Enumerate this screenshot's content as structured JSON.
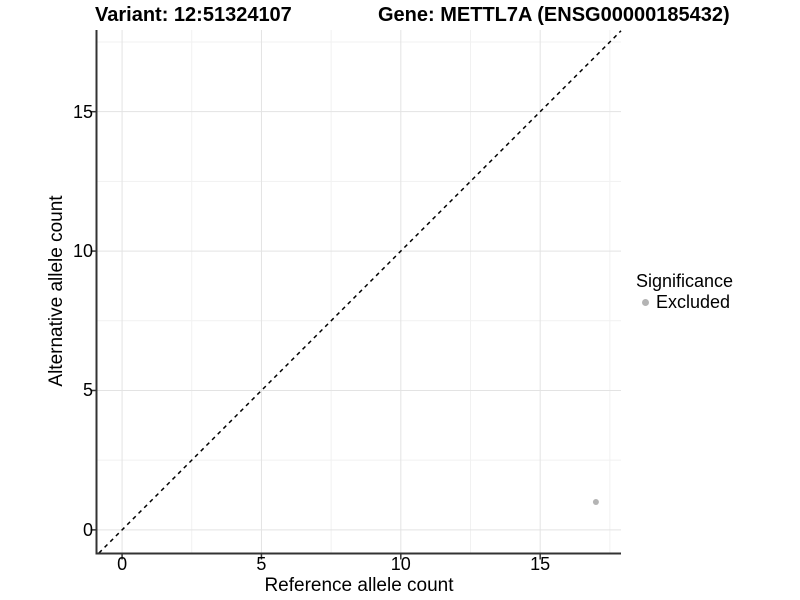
{
  "header": {
    "variant_title": "Variant: 12:51324107",
    "gene_title": "Gene: METTL7A (ENSG00000185432)"
  },
  "chart_data": {
    "type": "scatter",
    "title_left": "Variant: 12:51324107",
    "title_right": "Gene: METTL7A (ENSG00000185432)",
    "xlabel": "Reference allele count",
    "ylabel": "Alternative allele count",
    "xlim": [
      -0.9,
      17.9
    ],
    "ylim": [
      -0.83,
      17.93
    ],
    "x_ticks": [
      0,
      5,
      10,
      15
    ],
    "y_ticks": [
      0,
      5,
      10,
      15
    ],
    "x_minor_ticks": [
      2.5,
      7.5,
      12.5,
      17.5
    ],
    "y_minor_ticks": [
      2.5,
      7.5,
      12.5,
      17.5
    ],
    "grid": "major+minor",
    "series": [
      {
        "name": "Excluded",
        "points": [
          {
            "x": 17,
            "y": 1
          }
        ],
        "color": "#b4b4b4",
        "marker": "circle"
      }
    ],
    "reference_line": {
      "type": "identity",
      "slope": 1,
      "intercept": 0,
      "style": "dashed",
      "color": "#000000"
    },
    "legend": {
      "title": "Significance",
      "position": "right",
      "items": [
        {
          "label": "Excluded",
          "color": "#b4b4b4",
          "marker": "circle"
        }
      ]
    },
    "style": {
      "background": "#ffffff",
      "axis_line": "#333333",
      "tick_mark": "#333333",
      "grid_major": "#e3e3e3",
      "grid_minor": "#f1f1f1",
      "text": "#000000",
      "point": "#b4b4b4"
    }
  }
}
